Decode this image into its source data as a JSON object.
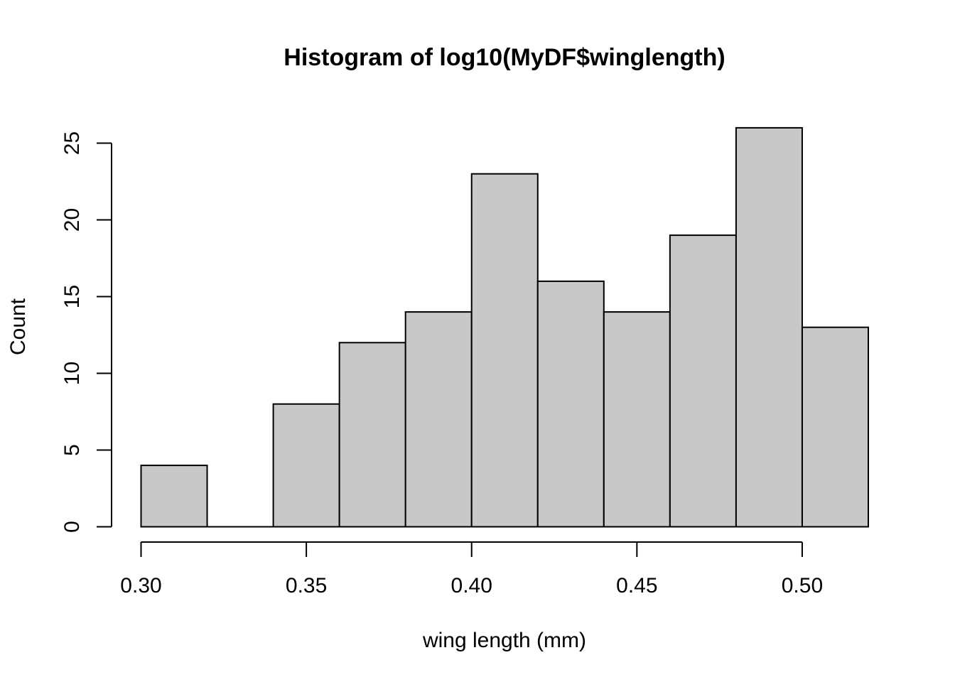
{
  "chart_data": {
    "type": "bar",
    "title": "Histogram of log10(MyDF$winglength)",
    "xlabel": "wing length (mm)",
    "ylabel": "Count",
    "bins": [
      {
        "start": 0.3,
        "end": 0.32,
        "count": 4
      },
      {
        "start": 0.32,
        "end": 0.34,
        "count": 0
      },
      {
        "start": 0.34,
        "end": 0.36,
        "count": 8
      },
      {
        "start": 0.36,
        "end": 0.38,
        "count": 12
      },
      {
        "start": 0.38,
        "end": 0.4,
        "count": 14
      },
      {
        "start": 0.4,
        "end": 0.42,
        "count": 23
      },
      {
        "start": 0.42,
        "end": 0.44,
        "count": 16
      },
      {
        "start": 0.44,
        "end": 0.46,
        "count": 14
      },
      {
        "start": 0.46,
        "end": 0.48,
        "count": 19
      },
      {
        "start": 0.48,
        "end": 0.5,
        "count": 26
      },
      {
        "start": 0.5,
        "end": 0.52,
        "count": 13
      }
    ],
    "xlim": [
      0.3,
      0.52
    ],
    "ylim": [
      0,
      26
    ],
    "x_ticks": [
      0.3,
      0.35,
      0.4,
      0.45,
      0.5
    ],
    "x_tick_labels": [
      "0.30",
      "0.35",
      "0.40",
      "0.45",
      "0.50"
    ],
    "y_ticks": [
      0,
      5,
      10,
      15,
      20,
      25
    ],
    "y_tick_labels": [
      "0",
      "5",
      "10",
      "15",
      "20",
      "25"
    ],
    "bar_color": "#c8c8c8",
    "grid": false
  }
}
